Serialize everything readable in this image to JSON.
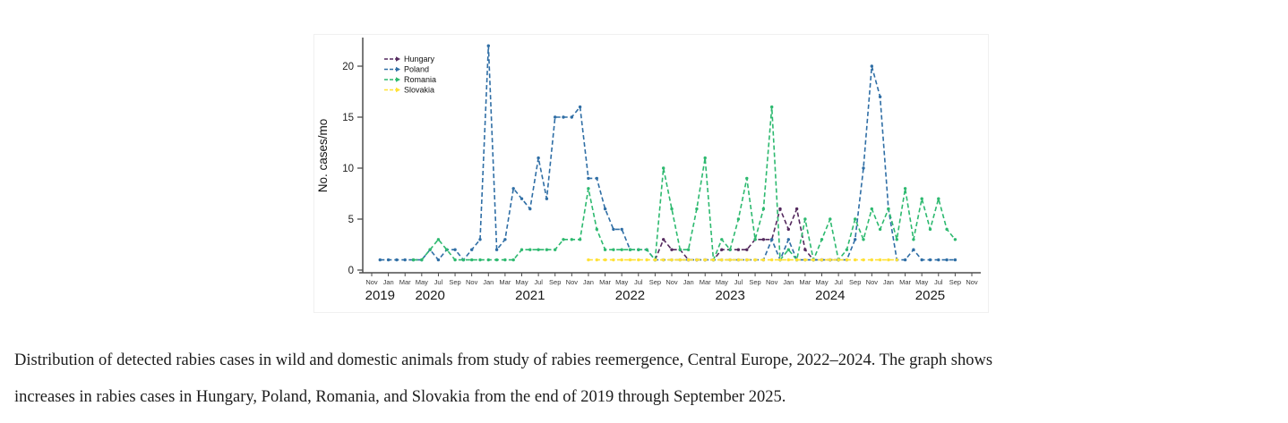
{
  "caption": {
    "line1": "Distribution of detected rabies cases in wild and domestic animals from study of rabies reemergence, Central Europe, 2022–2024. The graph shows",
    "line2": "increases in rabies cases in Hungary, Poland, Romania, and Slovakia from the end of 2019 through September 2025."
  },
  "chart_data": {
    "type": "line",
    "title": "",
    "xlabel": "",
    "ylabel": "No. cases/mo",
    "ylim": [
      0,
      22
    ],
    "yticks": [
      0,
      5,
      10,
      15,
      20
    ],
    "x_axis_note": "monthly data, ticks every 2 months from Nov 2019 to Nov 2025",
    "month_labels": [
      "Nov",
      "Jan",
      "Mar",
      "May",
      "Jul",
      "Sep",
      "Nov",
      "Jan",
      "Mar",
      "May",
      "Jul",
      "Sep",
      "Nov",
      "Jan",
      "Mar",
      "May",
      "Jul",
      "Sep",
      "Nov",
      "Jan",
      "Mar",
      "May",
      "Jul",
      "Sep",
      "Nov",
      "Jan",
      "Mar",
      "May",
      "Jul",
      "Sep",
      "Nov",
      "Jan",
      "Mar",
      "May",
      "Jul",
      "Sep",
      "Nov"
    ],
    "year_labels": [
      {
        "label": "2019",
        "t": 1
      },
      {
        "label": "2020",
        "t": 7
      },
      {
        "label": "2021",
        "t": 19
      },
      {
        "label": "2022",
        "t": 31
      },
      {
        "label": "2023",
        "t": 43
      },
      {
        "label": "2024",
        "t": 55
      },
      {
        "label": "2025",
        "t": 67
      }
    ],
    "legend": [
      "Hungary",
      "Poland",
      "Romania",
      "Slovakia"
    ],
    "legend_position": "top-left-inside",
    "grid": false,
    "series": [
      {
        "name": "Hungary",
        "color": "#54295e",
        "start": "2022-09",
        "values": [
          1,
          3,
          2,
          2,
          1,
          1,
          1,
          1,
          2,
          2,
          2,
          2,
          3,
          3,
          3,
          6,
          4,
          6,
          2,
          1,
          1,
          1,
          1
        ]
      },
      {
        "name": "Poland",
        "color": "#2f6ea5",
        "start": "2019-12",
        "values": [
          1,
          1,
          1,
          1,
          1,
          1,
          2,
          1,
          2,
          2,
          1,
          2,
          3,
          22,
          2,
          3,
          8,
          7,
          6,
          11,
          7,
          15,
          15,
          15,
          16,
          9,
          9,
          6,
          4,
          4,
          2,
          2,
          2,
          1,
          1,
          1,
          1,
          1,
          1,
          1,
          1,
          1,
          1,
          1,
          1,
          1,
          1,
          3,
          1,
          3,
          1,
          1,
          1,
          1,
          1,
          1,
          1,
          3,
          10,
          20,
          17,
          6,
          1,
          1,
          2,
          1,
          1,
          1,
          1,
          1
        ]
      },
      {
        "name": "Romania",
        "color": "#2db96f",
        "start": "2020-04",
        "values": [
          1,
          1,
          2,
          3,
          2,
          1,
          1,
          1,
          1,
          1,
          1,
          1,
          1,
          2,
          2,
          2,
          2,
          2,
          3,
          3,
          3,
          8,
          4,
          2,
          2,
          2,
          2,
          2,
          2,
          1,
          10,
          6,
          2,
          2,
          6,
          11,
          1,
          3,
          2,
          5,
          9,
          3,
          6,
          16,
          1,
          2,
          1,
          5,
          1,
          3,
          5,
          1,
          2,
          5,
          3,
          6,
          4,
          6,
          3,
          8,
          3,
          7,
          4,
          7,
          4,
          3
        ]
      },
      {
        "name": "Slovakia",
        "color": "#ffe136",
        "start": "2022-01",
        "values": [
          1,
          1,
          1,
          1,
          1,
          1,
          1,
          1,
          1,
          1,
          1,
          1,
          1,
          1,
          1,
          1,
          1,
          1,
          1,
          1,
          1,
          1,
          1,
          1,
          1,
          1,
          1,
          1,
          1,
          1,
          1,
          1,
          1,
          1,
          1,
          1,
          1,
          1
        ]
      }
    ]
  }
}
